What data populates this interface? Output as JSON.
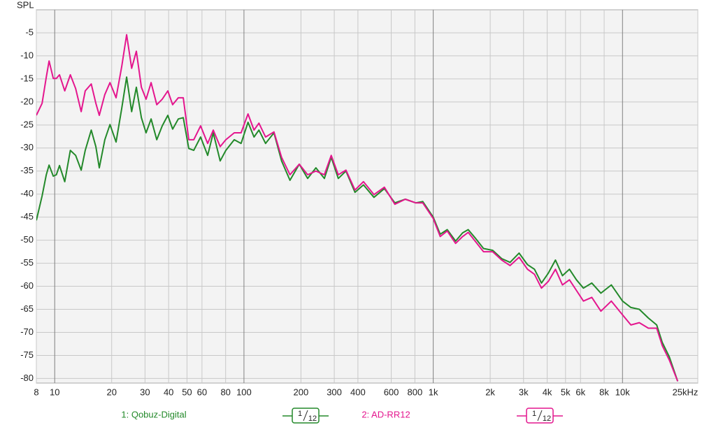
{
  "chart_data": {
    "type": "line",
    "ylabel": "SPL",
    "log_x": true,
    "grid": true,
    "xlim": [
      8,
      25000
    ],
    "ylim": [
      -81,
      0
    ],
    "xticks": [
      8,
      10,
      20,
      30,
      40,
      50,
      60,
      80,
      100,
      200,
      300,
      400,
      600,
      800,
      {
        "value": 1000,
        "label": "1k"
      },
      {
        "value": 2000,
        "label": "2k"
      },
      {
        "value": 3000,
        "label": "3k"
      },
      {
        "value": 4000,
        "label": "4k"
      },
      {
        "value": 5000,
        "label": "5k"
      },
      {
        "value": 6000,
        "label": "6k"
      },
      {
        "value": 8000,
        "label": "8k"
      },
      {
        "value": 10000,
        "label": "10k"
      },
      {
        "value": 25000,
        "label": "25kHz"
      }
    ],
    "yticks": [
      -5,
      -10,
      -15,
      -20,
      -25,
      -30,
      -35,
      -40,
      -45,
      -50,
      -55,
      -60,
      -65,
      -70,
      -75,
      -80
    ],
    "x": [
      8.0,
      8.58,
      9.03,
      9.34,
      9.83,
      10.2,
      10.6,
      11.3,
      12.1,
      12.9,
      13.8,
      14.5,
      15.6,
      16.5,
      17.2,
      18.4,
      19.6,
      21.1,
      22.6,
      24.0,
      25.5,
      27.0,
      28.7,
      30.4,
      32.3,
      34.6,
      37.0,
      39.6,
      42.0,
      45.0,
      47.8,
      51.1,
      54.3,
      59.0,
      64.3,
      68.8,
      74.9,
      80.2,
      88.8,
      96.6,
      105,
      113,
      120,
      130,
      144,
      158,
      175,
      196,
      217,
      240,
      266,
      289,
      315,
      346,
      386,
      428,
      486,
      552,
      627,
      712,
      808,
      880,
      1000,
      1089,
      1185,
      1313,
      1429,
      1530,
      1665,
      1844,
      2060,
      2299,
      2546,
      2843,
      3149,
      3428,
      3733,
      4064,
      4424,
      4817,
      5244,
      5709,
      6215,
      6882,
      7687,
      8730,
      10000,
      11075,
      12262,
      13697,
      15163,
      16233,
      17670,
      19563
    ],
    "series": [
      {
        "name": "1: Qobuz-Digital",
        "color": "#23892a",
        "smoothing": {
          "num": 1,
          "den": 12
        },
        "values": [
          -45.7,
          -40.4,
          -35.8,
          -33.7,
          -36.1,
          -35.8,
          -33.8,
          -37.3,
          -30.5,
          -31.6,
          -34.8,
          -30.5,
          -26.1,
          -29.7,
          -34.3,
          -28.2,
          -24.9,
          -28.7,
          -21.4,
          -14.6,
          -22.1,
          -16.8,
          -23.4,
          -26.7,
          -23.7,
          -28.2,
          -25.2,
          -22.9,
          -25.9,
          -23.7,
          -23.4,
          -30.1,
          -30.5,
          -27.6,
          -31.6,
          -26.7,
          -32.8,
          -30.5,
          -28.2,
          -29.0,
          -24.4,
          -27.6,
          -26.1,
          -29.0,
          -26.7,
          -32.8,
          -37.0,
          -33.5,
          -36.6,
          -34.3,
          -36.6,
          -32.0,
          -36.6,
          -35.0,
          -39.6,
          -38.0,
          -40.7,
          -38.8,
          -41.9,
          -41.1,
          -41.9,
          -41.6,
          -45.0,
          -48.7,
          -47.7,
          -50.2,
          -48.4,
          -47.7,
          -49.5,
          -51.8,
          -52.2,
          -54.0,
          -54.8,
          -52.8,
          -55.3,
          -56.3,
          -59.3,
          -57.1,
          -54.3,
          -57.7,
          -56.3,
          -58.6,
          -60.4,
          -59.3,
          -61.5,
          -59.7,
          -63.2,
          -64.6,
          -65.0,
          -66.9,
          -68.4,
          -72.2,
          -75.3,
          -80.6
        ]
      },
      {
        "name": "2: AD-RR12",
        "color": "#e4168e",
        "smoothing": {
          "num": 1,
          "den": 12
        },
        "values": [
          -22.9,
          -20.3,
          -14.6,
          -11.1,
          -14.9,
          -14.9,
          -14.1,
          -17.6,
          -14.1,
          -17.1,
          -22.1,
          -17.6,
          -16.1,
          -20.3,
          -22.9,
          -18.4,
          -15.8,
          -19.1,
          -12.3,
          -5.4,
          -12.7,
          -9.0,
          -16.8,
          -19.4,
          -15.8,
          -20.6,
          -19.4,
          -17.6,
          -20.6,
          -19.1,
          -19.1,
          -28.2,
          -28.2,
          -25.2,
          -29.0,
          -26.1,
          -29.7,
          -28.2,
          -26.7,
          -26.7,
          -22.6,
          -26.1,
          -24.6,
          -27.6,
          -26.5,
          -32.0,
          -35.8,
          -33.5,
          -35.8,
          -35.0,
          -35.8,
          -31.6,
          -35.8,
          -34.8,
          -39.1,
          -37.3,
          -40.1,
          -38.5,
          -42.2,
          -41.1,
          -41.9,
          -41.9,
          -45.3,
          -49.2,
          -48.0,
          -50.7,
          -49.2,
          -48.3,
          -50.2,
          -52.5,
          -52.5,
          -54.3,
          -55.5,
          -53.7,
          -56.3,
          -57.4,
          -60.4,
          -58.9,
          -56.3,
          -59.7,
          -58.6,
          -60.9,
          -63.2,
          -62.4,
          -65.4,
          -63.2,
          -66.2,
          -68.4,
          -67.9,
          -69.1,
          -69.1,
          -72.9,
          -76.0,
          -80.6
        ]
      }
    ]
  }
}
